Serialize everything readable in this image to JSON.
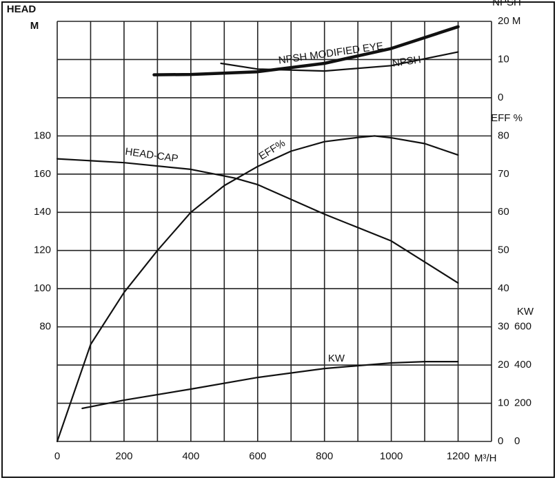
{
  "chart_data": {
    "type": "line",
    "xlim": [
      0,
      1300
    ],
    "xticks": [
      0,
      200,
      400,
      600,
      800,
      1000,
      1200
    ],
    "xlabel": "M³/H",
    "xgrid": [
      0,
      100,
      200,
      300,
      400,
      500,
      600,
      700,
      800,
      900,
      1000,
      1100,
      1200,
      1300
    ],
    "ylim": [
      20,
      240
    ],
    "yticks": [
      80,
      100,
      120,
      140,
      160,
      180
    ],
    "ylabel": [
      "HEAD",
      "M"
    ],
    "ygrid": [
      20,
      40,
      60,
      80,
      100,
      120,
      140,
      160,
      180,
      200,
      220,
      240
    ],
    "y2lim": [
      0,
      110
    ],
    "y2ticks": [
      0,
      10,
      20,
      30,
      40,
      50,
      60,
      70,
      80
    ],
    "y2label": "EFF %",
    "y3lim": [
      0,
      2200
    ],
    "y3ticks": [
      0,
      200,
      400,
      600
    ],
    "y3label": "KW",
    "y4lim": [
      -90,
      20
    ],
    "y4ticks": [
      0,
      10,
      {
        "value": 20,
        "label": "20 M"
      }
    ],
    "y4label": "NPSH",
    "color": "#111111",
    "series": [
      {
        "name": "HEAD-CAP",
        "axis": "y",
        "x": [
          0,
          200,
          400,
          530,
          600,
          800,
          1000,
          1200
        ],
        "values": [
          168,
          166,
          162.5,
          158,
          154.5,
          139,
          125,
          103
        ]
      },
      {
        "name": "EFF%",
        "axis": "y2",
        "x": [
          0,
          100,
          200,
          300,
          400,
          500,
          600,
          700,
          800,
          900,
          950,
          1000,
          1100,
          1200
        ],
        "values": [
          0,
          25.4,
          39,
          50,
          60,
          67,
          72,
          76,
          78.5,
          79.6,
          80,
          79.5,
          78,
          75
        ]
      },
      {
        "name": "KW",
        "axis": "y3",
        "x": [
          75,
          200,
          400,
          600,
          800,
          1000,
          1100,
          1200
        ],
        "values": [
          173,
          216,
          274,
          335,
          382,
          411,
          418,
          418
        ]
      },
      {
        "name": "NPSH MODIFIED EYE",
        "axis": "y4",
        "x": [
          290,
          400,
          600,
          800,
          1000,
          1200
        ],
        "values": [
          6,
          6.1,
          6.8,
          9,
          12.9,
          18.6
        ]
      },
      {
        "name": "NPSH",
        "axis": "y4",
        "x": [
          490,
          600,
          800,
          1000,
          1200
        ],
        "values": [
          9,
          7.5,
          7,
          8.4,
          12
        ]
      }
    ]
  }
}
